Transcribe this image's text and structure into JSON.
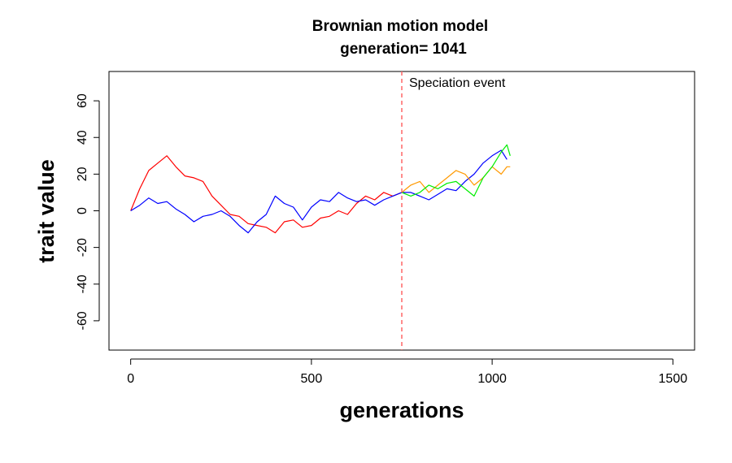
{
  "chart_data": {
    "type": "line",
    "title": "Brownian motion model",
    "subtitle": "generation= 1041",
    "xlabel": "generations",
    "ylabel": "trait value",
    "xlim": [
      -60,
      1560
    ],
    "ylim": [
      -76,
      76
    ],
    "x_ticks": [
      0,
      500,
      1000,
      1500
    ],
    "y_ticks": [
      -60,
      -40,
      -20,
      0,
      20,
      40,
      60
    ],
    "grid": false,
    "legend": "none",
    "annotation": {
      "text": "Speciation event",
      "x": 750,
      "line_color": "#ff6666",
      "line_style": "dashed"
    },
    "series": [
      {
        "color": "#ff0000",
        "points": [
          [
            0,
            0
          ],
          [
            25,
            12
          ],
          [
            50,
            22
          ],
          [
            75,
            26
          ],
          [
            100,
            30
          ],
          [
            125,
            24
          ],
          [
            150,
            19
          ],
          [
            175,
            18
          ],
          [
            200,
            16
          ],
          [
            225,
            8
          ],
          [
            250,
            3
          ],
          [
            275,
            -2
          ],
          [
            300,
            -3
          ],
          [
            325,
            -7
          ],
          [
            350,
            -8
          ],
          [
            375,
            -9
          ],
          [
            400,
            -12
          ],
          [
            425,
            -6
          ],
          [
            450,
            -5
          ],
          [
            475,
            -9
          ],
          [
            500,
            -8
          ],
          [
            525,
            -4
          ],
          [
            550,
            -3
          ],
          [
            575,
            0
          ],
          [
            600,
            -2
          ],
          [
            625,
            4
          ],
          [
            650,
            8
          ],
          [
            675,
            6
          ],
          [
            700,
            10
          ],
          [
            725,
            8
          ],
          [
            750,
            10
          ]
        ]
      },
      {
        "color": "#0000ff",
        "points": [
          [
            0,
            0
          ],
          [
            25,
            3
          ],
          [
            50,
            7
          ],
          [
            75,
            4
          ],
          [
            100,
            5
          ],
          [
            125,
            1
          ],
          [
            150,
            -2
          ],
          [
            175,
            -6
          ],
          [
            200,
            -3
          ],
          [
            225,
            -2
          ],
          [
            250,
            0
          ],
          [
            275,
            -3
          ],
          [
            300,
            -8
          ],
          [
            325,
            -12
          ],
          [
            350,
            -6
          ],
          [
            375,
            -2
          ],
          [
            400,
            8
          ],
          [
            425,
            4
          ],
          [
            450,
            2
          ],
          [
            475,
            -5
          ],
          [
            500,
            2
          ],
          [
            525,
            6
          ],
          [
            550,
            5
          ],
          [
            575,
            10
          ],
          [
            600,
            7
          ],
          [
            625,
            5
          ],
          [
            650,
            6
          ],
          [
            675,
            3
          ],
          [
            700,
            6
          ],
          [
            725,
            8
          ],
          [
            750,
            10
          ],
          [
            775,
            10
          ],
          [
            800,
            8
          ],
          [
            825,
            6
          ],
          [
            850,
            9
          ],
          [
            875,
            12
          ],
          [
            900,
            11
          ],
          [
            925,
            16
          ],
          [
            950,
            20
          ],
          [
            975,
            26
          ],
          [
            1000,
            30
          ],
          [
            1025,
            33
          ],
          [
            1041,
            28
          ]
        ]
      },
      {
        "color": "#ff9900",
        "points": [
          [
            750,
            10
          ],
          [
            775,
            14
          ],
          [
            800,
            16
          ],
          [
            825,
            10
          ],
          [
            850,
            14
          ],
          [
            875,
            18
          ],
          [
            900,
            22
          ],
          [
            925,
            20
          ],
          [
            950,
            14
          ],
          [
            975,
            18
          ],
          [
            1000,
            24
          ],
          [
            1025,
            20
          ],
          [
            1041,
            24
          ],
          [
            1050,
            24
          ]
        ]
      },
      {
        "color": "#00ee00",
        "points": [
          [
            750,
            10
          ],
          [
            775,
            8
          ],
          [
            800,
            10
          ],
          [
            825,
            14
          ],
          [
            850,
            12
          ],
          [
            875,
            15
          ],
          [
            900,
            16
          ],
          [
            925,
            12
          ],
          [
            950,
            8
          ],
          [
            975,
            18
          ],
          [
            1000,
            24
          ],
          [
            1025,
            32
          ],
          [
            1041,
            36
          ],
          [
            1050,
            30
          ]
        ]
      }
    ]
  }
}
